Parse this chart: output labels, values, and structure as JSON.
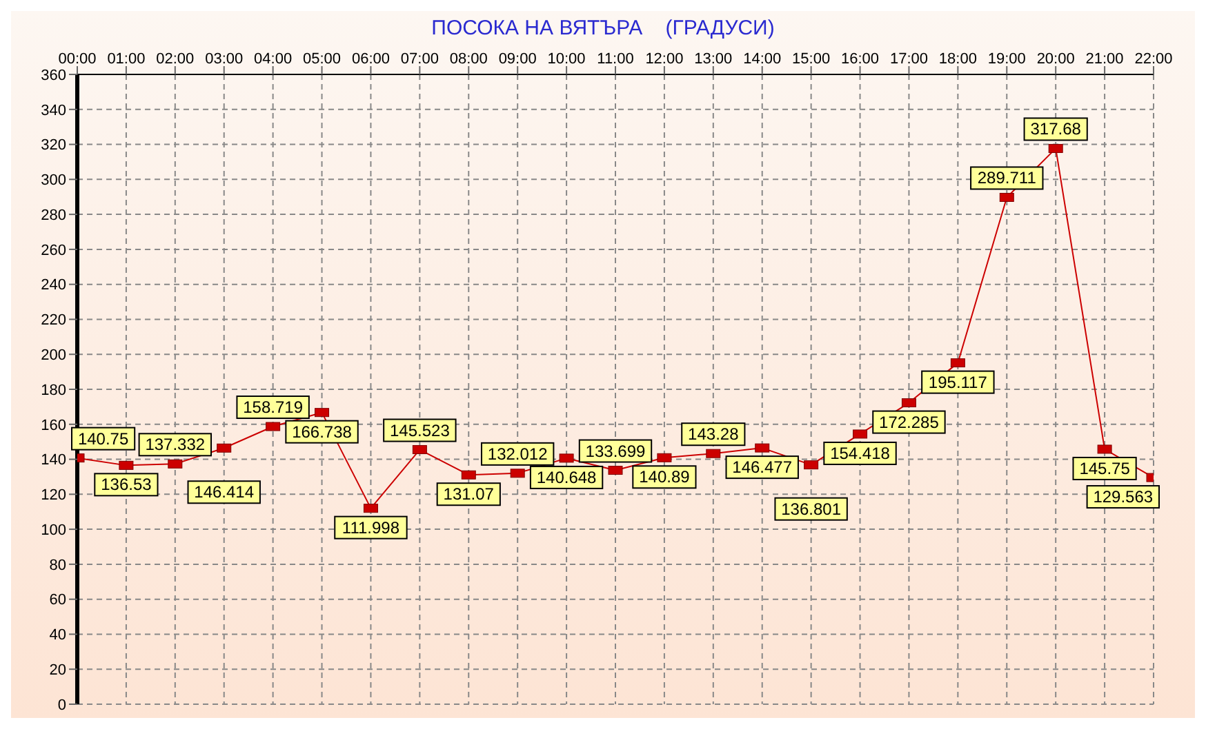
{
  "chart_data": {
    "type": "line",
    "title": "ПОСОКА НА ВЯТЪРА    (ГРАДУСИ)",
    "categories": [
      "00:00",
      "01:00",
      "02:00",
      "03:00",
      "04:00",
      "05:00",
      "06:00",
      "07:00",
      "08:00",
      "09:00",
      "10:00",
      "11:00",
      "12:00",
      "13:00",
      "14:00",
      "15:00",
      "16:00",
      "17:00",
      "18:00",
      "19:00",
      "20:00",
      "21:00",
      "22:00"
    ],
    "series": [
      {
        "color": "#cc0000",
        "values": [
          140.75,
          136.53,
          137.332,
          146.414,
          158.719,
          166.738,
          111.998,
          145.523,
          131.07,
          132.012,
          140.648,
          133.699,
          140.89,
          143.28,
          146.477,
          136.801,
          154.418,
          172.285,
          195.117,
          289.711,
          317.68,
          145.75,
          129.563
        ]
      }
    ],
    "ylim": [
      0,
      360
    ],
    "yticks": [
      0,
      20,
      40,
      60,
      80,
      100,
      120,
      140,
      160,
      180,
      200,
      220,
      240,
      260,
      280,
      300,
      320,
      340,
      360
    ],
    "grid": true,
    "data_labels": true,
    "marker": "square",
    "line_style": "solid"
  }
}
